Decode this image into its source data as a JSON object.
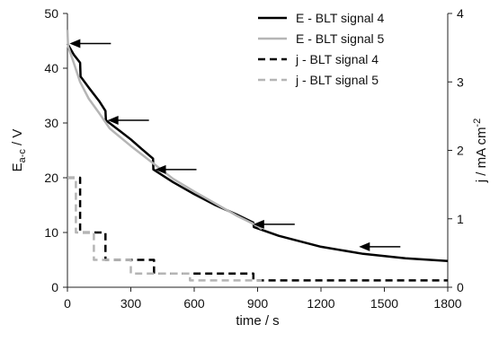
{
  "chart_data": {
    "type": "line",
    "xlabel": "time / s",
    "ylabel_left": {
      "main": "E",
      "sub": "a-c",
      "unit": " / V"
    },
    "ylabel_right": {
      "main": "j / mA cm",
      "sup": "-2"
    },
    "xlim": [
      0,
      1800
    ],
    "ylim_left": [
      0,
      50
    ],
    "ylim_right": [
      0,
      4
    ],
    "x_ticks": [
      0,
      300,
      600,
      900,
      1200,
      1500,
      1800
    ],
    "y_left_ticks": [
      0,
      10,
      20,
      30,
      40,
      50
    ],
    "y_right_ticks": [
      0,
      1,
      2,
      3,
      4
    ],
    "grid": false,
    "legend_position": "top-right",
    "colors": {
      "black": "#000000",
      "gray": "#b5b5b5",
      "axis": "#222222"
    },
    "series": [
      {
        "name": "E - BLT signal 4",
        "axis": "left",
        "style": "solid",
        "color": "#000000",
        "points": [
          [
            0,
            44.5
          ],
          [
            30,
            42.5
          ],
          [
            60,
            41
          ],
          [
            62,
            38.5
          ],
          [
            100,
            36.5
          ],
          [
            150,
            34
          ],
          [
            180,
            32.2
          ],
          [
            182,
            30.5
          ],
          [
            250,
            28.5
          ],
          [
            300,
            27
          ],
          [
            350,
            25.3
          ],
          [
            405,
            23.5
          ],
          [
            407,
            21.5
          ],
          [
            500,
            19.2
          ],
          [
            600,
            17
          ],
          [
            700,
            15
          ],
          [
            800,
            13.3
          ],
          [
            880,
            11.8
          ],
          [
            882,
            11
          ],
          [
            1000,
            9.4
          ],
          [
            1200,
            7.4
          ],
          [
            1400,
            6.1
          ],
          [
            1600,
            5.3
          ],
          [
            1800,
            4.8
          ]
        ]
      },
      {
        "name": "E - BLT signal 5",
        "axis": "left",
        "style": "solid",
        "color": "#b5b5b5",
        "points": [
          [
            0,
            47
          ],
          [
            3,
            44
          ],
          [
            30,
            41
          ],
          [
            60,
            37.5
          ],
          [
            100,
            34.5
          ],
          [
            150,
            31.8
          ],
          [
            200,
            29
          ],
          [
            300,
            25.8
          ],
          [
            400,
            22.8
          ],
          [
            500,
            19.8
          ],
          [
            600,
            17.5
          ],
          [
            700,
            15.3
          ],
          [
            800,
            13.1
          ],
          [
            900,
            11.2
          ],
          [
            920,
            10.6
          ]
        ]
      },
      {
        "name": "j - BLT signal 4",
        "axis": "right",
        "style": "dashed",
        "color": "#000000",
        "points": [
          [
            0,
            1.6
          ],
          [
            60,
            1.6
          ],
          [
            60,
            0.8
          ],
          [
            180,
            0.8
          ],
          [
            180,
            0.4
          ],
          [
            410,
            0.4
          ],
          [
            410,
            0.2
          ],
          [
            880,
            0.2
          ],
          [
            880,
            0.1
          ],
          [
            1800,
            0.1
          ]
        ]
      },
      {
        "name": "j - BLT signal 5",
        "axis": "right",
        "style": "dashed",
        "color": "#b5b5b5",
        "points": [
          [
            0,
            1.6
          ],
          [
            40,
            1.6
          ],
          [
            40,
            0.8
          ],
          [
            125,
            0.8
          ],
          [
            125,
            0.4
          ],
          [
            300,
            0.4
          ],
          [
            300,
            0.2
          ],
          [
            580,
            0.2
          ],
          [
            580,
            0.1
          ],
          [
            920,
            0.1
          ]
        ]
      }
    ],
    "annotations": [
      {
        "type": "arrow",
        "direction": "left",
        "points_to": [
          10,
          44.5
        ]
      },
      {
        "type": "arrow",
        "direction": "left",
        "points_to": [
          190,
          30.5
        ]
      },
      {
        "type": "arrow",
        "direction": "left",
        "points_to": [
          415,
          21.5
        ]
      },
      {
        "type": "arrow",
        "direction": "left",
        "points_to": [
          880,
          11.5
        ]
      },
      {
        "type": "arrow",
        "direction": "left",
        "points_to": [
          1380,
          7.4
        ]
      }
    ]
  }
}
